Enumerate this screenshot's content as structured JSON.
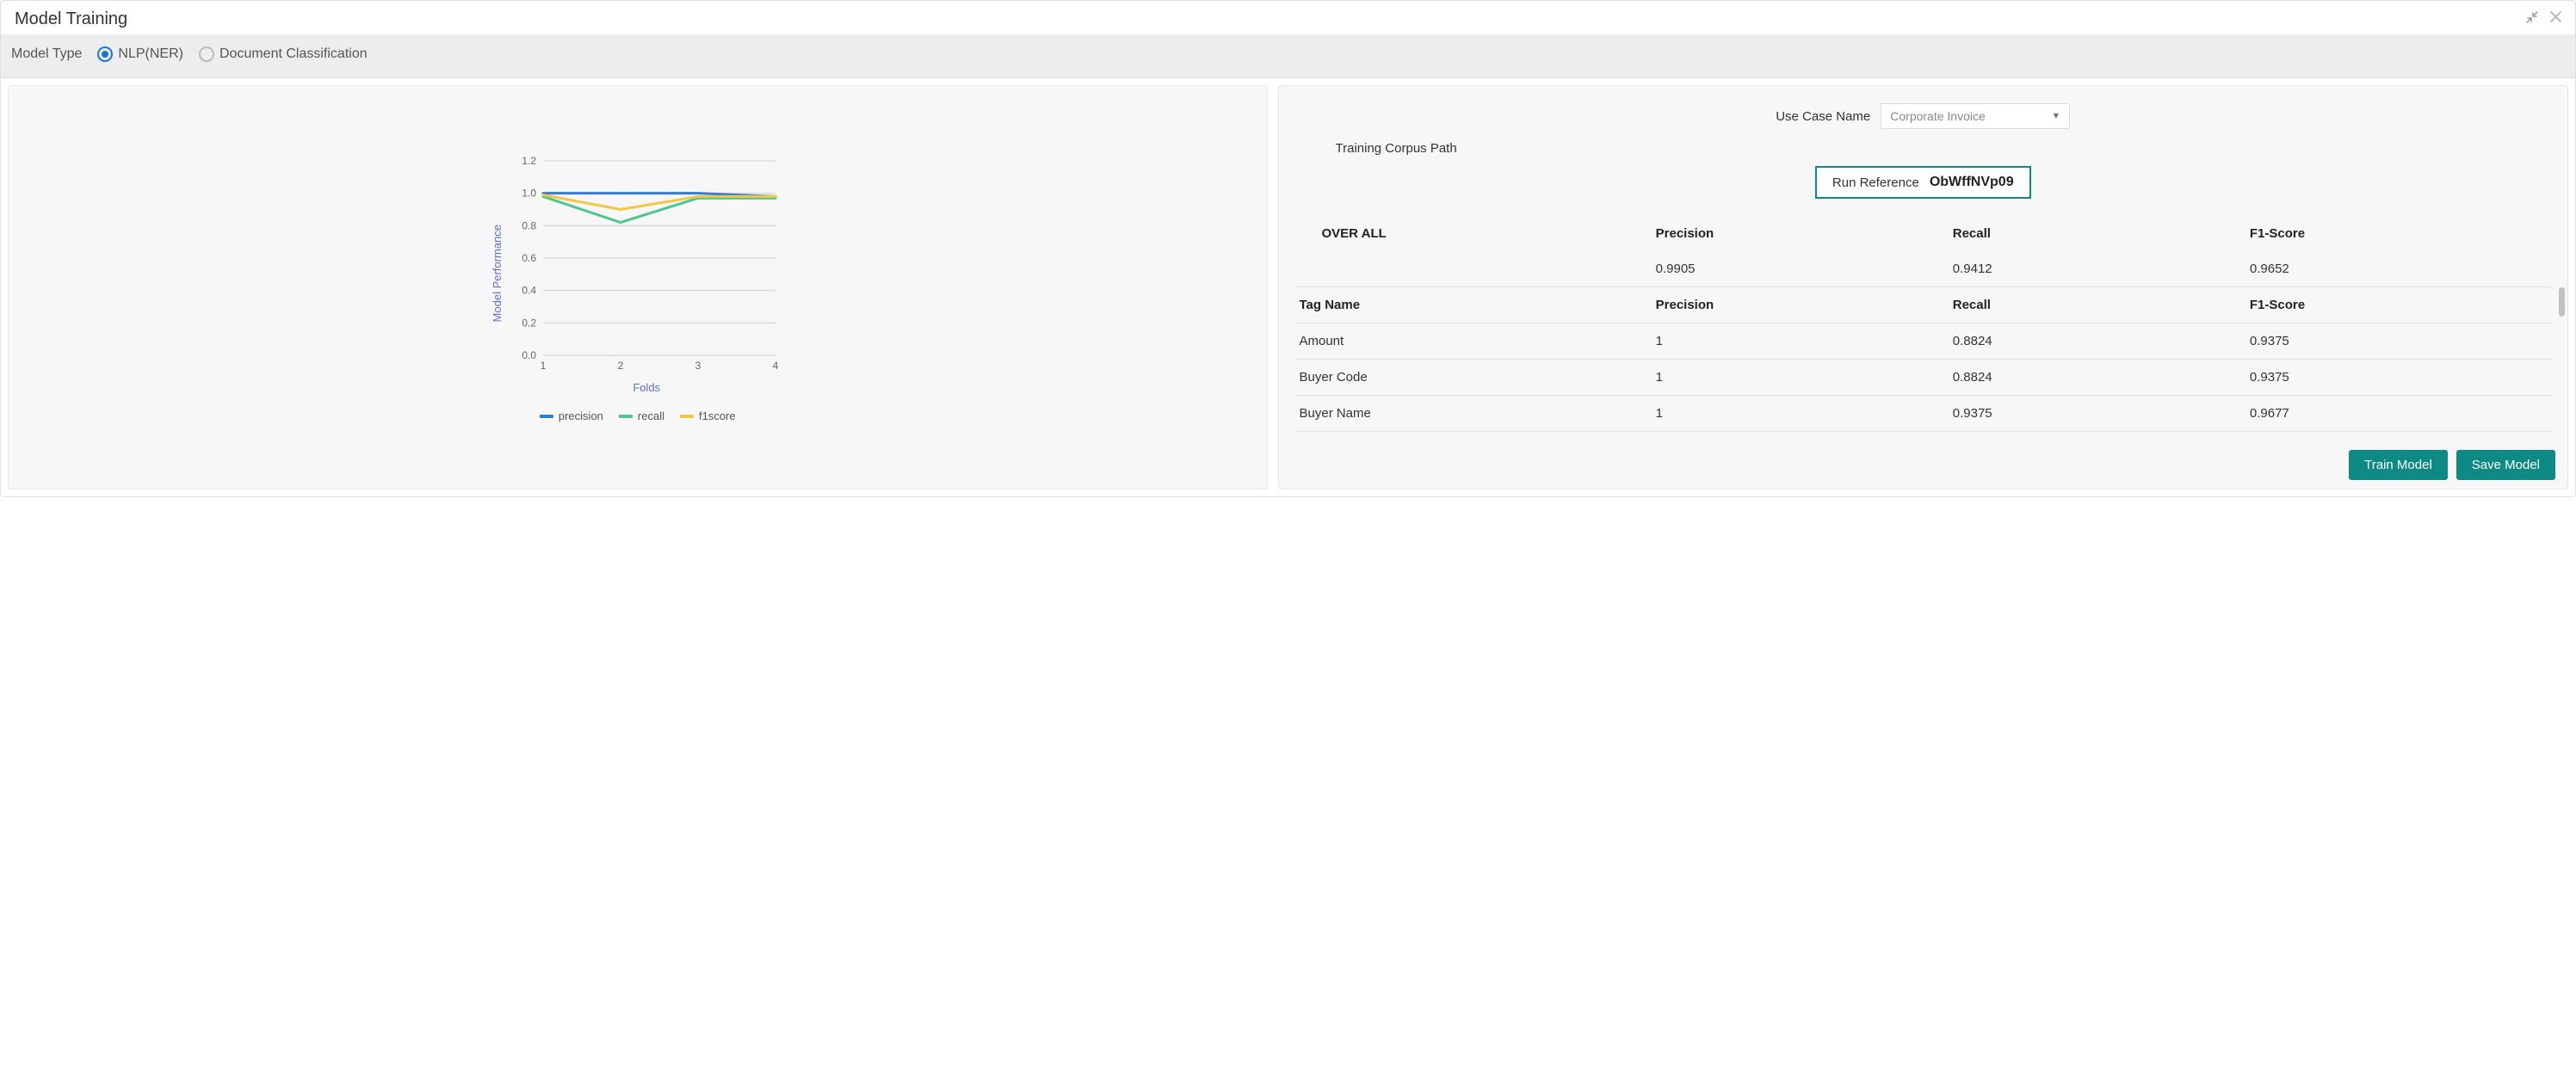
{
  "window": {
    "title": "Model Training",
    "minimize_tooltip": "Collapse",
    "close_tooltip": "Close"
  },
  "model_type": {
    "label": "Model Type",
    "options": [
      {
        "id": "nlp-ner",
        "label": "NLP(NER)",
        "checked": true
      },
      {
        "id": "doc-class",
        "label": "Document Classification",
        "checked": false
      }
    ]
  },
  "chart": {
    "type": "line",
    "y_label": "Model Performance",
    "x_label": "Folds",
    "x_categories": [
      "1",
      "2",
      "3",
      "4"
    ],
    "ylim": [
      0.0,
      1.2
    ],
    "yticks": [
      "0.0",
      "0.2",
      "0.4",
      "0.6",
      "0.8",
      "1.0",
      "1.2"
    ],
    "grid_color": "#cfcfcf",
    "axis_color": "#cfcfcf",
    "tick_text_color": "#666666",
    "axis_label_color": "#5b6fd8",
    "background_color": "#f7f7f7",
    "line_width": 3,
    "series": [
      {
        "name": "precision",
        "color": "#2f7ed8",
        "values": [
          1.0,
          1.0,
          1.0,
          0.98
        ]
      },
      {
        "name": "recall",
        "color": "#4bc78f",
        "values": [
          0.98,
          0.82,
          0.97,
          0.97
        ]
      },
      {
        "name": "f1score",
        "color": "#f2c744",
        "values": [
          0.99,
          0.9,
          0.98,
          0.98
        ]
      }
    ]
  },
  "right_panel": {
    "use_case_label": "Use Case Name",
    "use_case_value": "Corporate Invoice",
    "corpus_label": "Training Corpus Path",
    "run_ref_label": "Run Reference",
    "run_ref_value": "ObWffNVp09",
    "overall_label": "OVER ALL",
    "columns": {
      "c1": "Precision",
      "c2": "Recall",
      "c3": "F1-Score"
    },
    "overall_values": {
      "precision": "0.9905",
      "recall": "0.9412",
      "f1": "0.9652"
    },
    "tag_header": {
      "name": "Tag Name",
      "c1": "Precision",
      "c2": "Recall",
      "c3": "F1-Score"
    },
    "rows": [
      {
        "name": "Amount",
        "precision": "1",
        "recall": "0.8824",
        "f1": "0.9375"
      },
      {
        "name": "Buyer Code",
        "precision": "1",
        "recall": "0.8824",
        "f1": "0.9375"
      },
      {
        "name": "Buyer Name",
        "precision": "1",
        "recall": "0.9375",
        "f1": "0.9677"
      }
    ]
  },
  "buttons": {
    "train": "Train Model",
    "save": "Save Model"
  },
  "colors": {
    "accent": "#0d8a84",
    "radio_checked": "#1976d2",
    "panel_bg": "#f7f7f7",
    "border": "#e0e0e0"
  }
}
